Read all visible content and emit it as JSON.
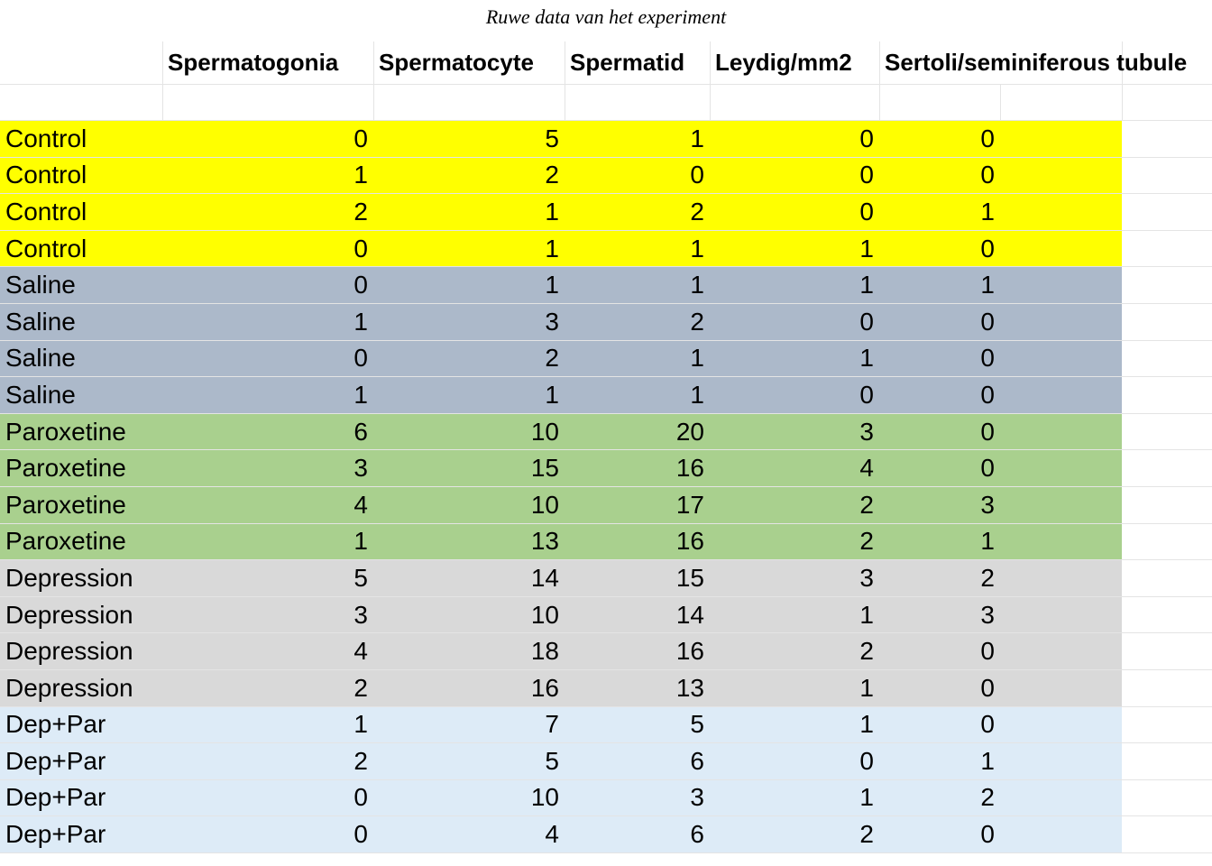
{
  "caption": "Ruwe data van het experiment",
  "headers": [
    "",
    "Spermatogonia",
    "Spermatocyte",
    "Spermatid",
    "Leydig/mm2",
    "Sertoli/seminiferous tubule"
  ],
  "group_colors": {
    "Control": "#ffff00",
    "Saline": "#acb9ca",
    "Paroxetine": "#a9d08e",
    "Depression": "#d9d9d9",
    "Dep+Par": "#ddebf7"
  },
  "rows": [
    {
      "group": "Control",
      "values": [
        "0",
        "5",
        "1",
        "0",
        "0"
      ]
    },
    {
      "group": "Control",
      "values": [
        "1",
        "2",
        "0",
        "0",
        "0"
      ]
    },
    {
      "group": "Control",
      "values": [
        "2",
        "1",
        "2",
        "0",
        "1"
      ]
    },
    {
      "group": "Control",
      "values": [
        "0",
        "1",
        "1",
        "1",
        "0"
      ]
    },
    {
      "group": "Saline",
      "values": [
        "0",
        "1",
        "1",
        "1",
        "1"
      ]
    },
    {
      "group": "Saline",
      "values": [
        "1",
        "3",
        "2",
        "0",
        "0"
      ]
    },
    {
      "group": "Saline",
      "values": [
        "0",
        "2",
        "1",
        "1",
        "0"
      ]
    },
    {
      "group": "Saline",
      "values": [
        "1",
        "1",
        "1",
        "0",
        "0"
      ]
    },
    {
      "group": "Paroxetine",
      "values": [
        "6",
        "10",
        "20",
        "3",
        "0"
      ]
    },
    {
      "group": "Paroxetine",
      "values": [
        "3",
        "15",
        "16",
        "4",
        "0"
      ]
    },
    {
      "group": "Paroxetine",
      "values": [
        "4",
        "10",
        "17",
        "2",
        "3"
      ]
    },
    {
      "group": "Paroxetine",
      "values": [
        "1",
        "13",
        "16",
        "2",
        "1"
      ]
    },
    {
      "group": "Depression",
      "values": [
        "5",
        "14",
        "15",
        "3",
        "2"
      ]
    },
    {
      "group": "Depression",
      "values": [
        "3",
        "10",
        "14",
        "1",
        "3"
      ]
    },
    {
      "group": "Depression",
      "values": [
        "4",
        "18",
        "16",
        "2",
        "0"
      ]
    },
    {
      "group": "Depression",
      "values": [
        "2",
        "16",
        "13",
        "1",
        "0"
      ]
    },
    {
      "group": "Dep+Par",
      "values": [
        "1",
        "7",
        "5",
        "1",
        "0"
      ]
    },
    {
      "group": "Dep+Par",
      "values": [
        "2",
        "5",
        "6",
        "0",
        "1"
      ]
    },
    {
      "group": "Dep+Par",
      "values": [
        "0",
        "10",
        "3",
        "1",
        "2"
      ]
    },
    {
      "group": "Dep+Par",
      "values": [
        "0",
        "4",
        "6",
        "2",
        "0"
      ]
    }
  ]
}
